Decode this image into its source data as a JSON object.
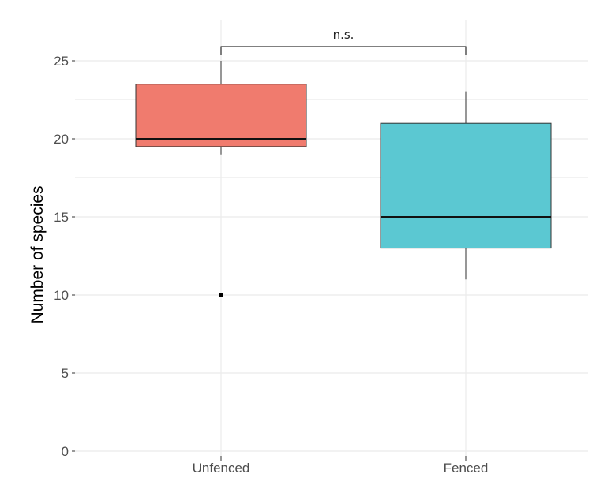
{
  "chart_data": {
    "type": "box",
    "title": "",
    "xlabel": "",
    "ylabel": "Number of species",
    "ylim": [
      0,
      25
    ],
    "y_ticks": [
      0,
      5,
      10,
      15,
      20,
      25
    ],
    "y_tick_labels": [
      "0",
      "5",
      "10",
      "15",
      "20",
      "25"
    ],
    "grid": true,
    "legend": "none",
    "categories": [
      "Unfenced",
      "Fenced"
    ],
    "boxes": [
      {
        "category": "Unfenced",
        "whisker_low": 19,
        "q1": 19.5,
        "median": 20,
        "q3": 23.5,
        "whisker_high": 25,
        "outliers": [
          10
        ],
        "color": "#F07B6E"
      },
      {
        "category": "Fenced",
        "whisker_low": 11,
        "q1": 13,
        "median": 15,
        "q3": 21,
        "whisker_high": 23,
        "outliers": [],
        "color": "#5BC8D2"
      }
    ],
    "annotations": [
      {
        "text": "n.s.",
        "between": [
          "Unfenced",
          "Fenced"
        ]
      }
    ]
  }
}
